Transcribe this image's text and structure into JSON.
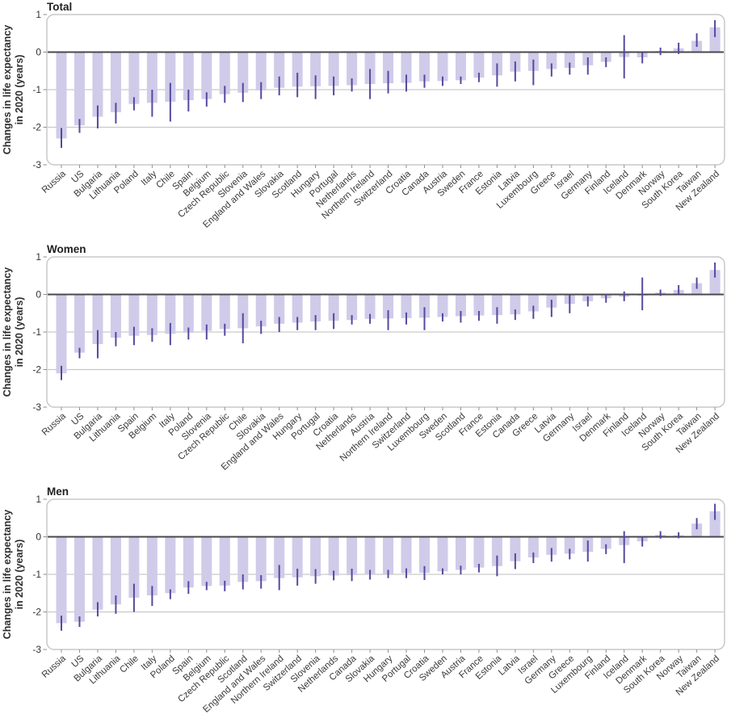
{
  "colors": {
    "bar_fill": "#cfcbe9",
    "error_bar": "#544a9e",
    "zero_line": "#48484e",
    "gridline": "#c9c9c9",
    "frame": "#c8c8c8",
    "tick_mark": "#8f8f8f",
    "title_text": "#1f1f1f",
    "tick_text": "#3a3a3a"
  },
  "chart_data": [
    {
      "type": "bar",
      "title": "Total",
      "ylabel": "Changes in life expectancy in 2020 (years)",
      "ylabel_line1": "Changes in life expectancy",
      "ylabel_line2": "in 2020 (years)",
      "ylim": [
        -3,
        1
      ],
      "yticks": [
        1,
        0,
        -1,
        -2,
        -3
      ],
      "gridlines": [
        -1,
        -2
      ],
      "legend": "none",
      "error_bars": true,
      "categories": [
        "Russia",
        "US",
        "Bulgaria",
        "Lithuania",
        "Poland",
        "Italy",
        "Chile",
        "Spain",
        "Belgium",
        "Czech Republic",
        "Slovenia",
        "England and Wales",
        "Slovakia",
        "Scotland",
        "Hungary",
        "Portugal",
        "Netherlands",
        "Northern Ireland",
        "Switzerland",
        "Croatia",
        "Canada",
        "Austria",
        "Sweden",
        "France",
        "Estonia",
        "Latvia",
        "Luxembourg",
        "Greece",
        "Israel",
        "Germany",
        "Finland",
        "Iceland",
        "Denmark",
        "Norway",
        "South Korea",
        "Taiwan",
        "New Zealand"
      ],
      "values": [
        -2.3,
        -1.95,
        -1.72,
        -1.6,
        -1.38,
        -1.35,
        -1.32,
        -1.28,
        -1.25,
        -1.12,
        -1.08,
        -1.02,
        -0.95,
        -0.92,
        -0.91,
        -0.9,
        -0.88,
        -0.85,
        -0.83,
        -0.82,
        -0.78,
        -0.77,
        -0.75,
        -0.68,
        -0.62,
        -0.52,
        -0.5,
        -0.45,
        -0.42,
        -0.35,
        -0.26,
        -0.13,
        -0.14,
        0.03,
        0.1,
        0.3,
        0.66
      ],
      "ci_lower": [
        -2.55,
        -2.15,
        -2.03,
        -1.9,
        -1.55,
        -1.72,
        -1.85,
        -1.58,
        -1.45,
        -1.35,
        -1.33,
        -1.25,
        -1.15,
        -1.2,
        -1.25,
        -1.15,
        -1.05,
        -1.25,
        -1.1,
        -1.05,
        -0.95,
        -0.9,
        -0.85,
        -0.8,
        -0.92,
        -0.78,
        -0.88,
        -0.65,
        -0.6,
        -0.6,
        -0.4,
        -0.7,
        -0.3,
        -0.08,
        -0.05,
        0.14,
        0.4
      ],
      "ci_upper": [
        -2.02,
        -1.78,
        -1.42,
        -1.35,
        -1.2,
        -1.0,
        -0.82,
        -1.0,
        -1.07,
        -0.9,
        -0.82,
        -0.8,
        -0.65,
        -0.55,
        -0.62,
        -0.65,
        -0.7,
        -0.45,
        -0.5,
        -0.6,
        -0.6,
        -0.65,
        -0.65,
        -0.55,
        -0.3,
        -0.25,
        -0.2,
        -0.3,
        -0.28,
        -0.14,
        -0.14,
        0.45,
        -0.02,
        0.12,
        0.25,
        0.5,
        0.85
      ]
    },
    {
      "type": "bar",
      "title": "Women",
      "ylabel": "Changes in life expectancy in 2020 (years)",
      "ylabel_line1": "Changes in life expectancy",
      "ylabel_line2": "in 2020 (years)",
      "ylim": [
        -3,
        1
      ],
      "yticks": [
        1,
        0,
        -1,
        -2,
        -3
      ],
      "gridlines": [
        -1,
        -2
      ],
      "legend": "none",
      "error_bars": true,
      "categories": [
        "Russia",
        "US",
        "Bulgaria",
        "Lithuania",
        "Spain",
        "Belgium",
        "Italy",
        "Poland",
        "Slovenia",
        "Czech Republic",
        "Chile",
        "Slovakia",
        "England and Wales",
        "Hungary",
        "Portugal",
        "Croatia",
        "Netherlands",
        "Austria",
        "Northern Ireland",
        "Switzerland",
        "Luxembourg",
        "Sweden",
        "Scotland",
        "France",
        "Estonia",
        "Canada",
        "Greece",
        "Latvia",
        "Germany",
        "Israel",
        "Denmark",
        "Finland",
        "Iceland",
        "Norway",
        "South Korea",
        "Taiwan",
        "New Zealand"
      ],
      "values": [
        -2.1,
        -1.55,
        -1.32,
        -1.15,
        -1.1,
        -1.08,
        -1.05,
        -1.02,
        -0.97,
        -0.92,
        -0.9,
        -0.85,
        -0.78,
        -0.75,
        -0.72,
        -0.7,
        -0.68,
        -0.65,
        -0.64,
        -0.63,
        -0.62,
        -0.6,
        -0.58,
        -0.56,
        -0.55,
        -0.53,
        -0.45,
        -0.35,
        -0.25,
        -0.18,
        -0.1,
        -0.06,
        -0.03,
        0.05,
        0.12,
        0.3,
        0.65
      ],
      "ci_lower": [
        -2.28,
        -1.7,
        -1.7,
        -1.38,
        -1.35,
        -1.26,
        -1.35,
        -1.2,
        -1.2,
        -1.1,
        -1.3,
        -1.05,
        -1.0,
        -0.95,
        -0.95,
        -0.92,
        -0.8,
        -0.78,
        -0.95,
        -0.8,
        -0.95,
        -0.72,
        -0.75,
        -0.7,
        -0.78,
        -0.68,
        -0.65,
        -0.6,
        -0.5,
        -0.32,
        -0.22,
        -0.18,
        -0.42,
        -0.04,
        0.0,
        0.15,
        0.45
      ],
      "ci_upper": [
        -1.9,
        -1.42,
        -0.95,
        -1.0,
        -0.86,
        -0.9,
        -0.76,
        -0.88,
        -0.8,
        -0.78,
        -0.5,
        -0.7,
        -0.6,
        -0.6,
        -0.55,
        -0.5,
        -0.55,
        -0.52,
        -0.42,
        -0.48,
        -0.34,
        -0.5,
        -0.44,
        -0.44,
        -0.34,
        -0.4,
        -0.3,
        -0.14,
        -0.02,
        -0.05,
        0.02,
        0.08,
        0.45,
        0.13,
        0.25,
        0.45,
        0.85
      ]
    },
    {
      "type": "bar",
      "title": "Men",
      "ylabel": "Changes in life expectancy in 2020 (years)",
      "ylabel_line1": "Changes in life expectancy",
      "ylabel_line2": "in 2020 (years)",
      "ylim": [
        -3,
        1
      ],
      "yticks": [
        1,
        0,
        -1,
        -2,
        -3
      ],
      "gridlines": [
        -1,
        -2
      ],
      "legend": "none",
      "error_bars": true,
      "categories": [
        "Russia",
        "US",
        "Bulgaria",
        "Lithuania",
        "Chile",
        "Italy",
        "Poland",
        "Spain",
        "Belgium",
        "Czech Republic",
        "Scotland",
        "England and Wales",
        "Northern Ireland",
        "Switzerland",
        "Slovenia",
        "Netherlands",
        "Canada",
        "Slovakia",
        "Hungary",
        "Portugal",
        "Croatia",
        "Sweden",
        "Austria",
        "France",
        "Estonia",
        "Latvia",
        "Israel",
        "Germany",
        "Greece",
        "Luxembourg",
        "Finland",
        "Iceland",
        "Denmark",
        "South Korea",
        "Norway",
        "Taiwan",
        "New Zealand"
      ],
      "values": [
        -2.3,
        -2.26,
        -1.94,
        -1.8,
        -1.62,
        -1.56,
        -1.5,
        -1.35,
        -1.31,
        -1.3,
        -1.2,
        -1.18,
        -1.1,
        -1.08,
        -1.05,
        -1.03,
        -1.02,
        -1.0,
        -0.99,
        -0.97,
        -0.96,
        -0.92,
        -0.88,
        -0.82,
        -0.78,
        -0.65,
        -0.55,
        -0.48,
        -0.45,
        -0.4,
        -0.32,
        -0.22,
        -0.12,
        0.05,
        0.04,
        0.35,
        0.68
      ],
      "ci_lower": [
        -2.5,
        -2.4,
        -2.12,
        -2.05,
        -2.0,
        -1.84,
        -1.66,
        -1.52,
        -1.42,
        -1.45,
        -1.4,
        -1.38,
        -1.42,
        -1.3,
        -1.25,
        -1.16,
        -1.18,
        -1.14,
        -1.1,
        -1.1,
        -1.15,
        -1.0,
        -1.0,
        -0.95,
        -1.05,
        -0.86,
        -0.7,
        -0.66,
        -0.6,
        -0.66,
        -0.46,
        -0.7,
        -0.26,
        -0.05,
        -0.04,
        0.2,
        0.45
      ],
      "ci_upper": [
        -2.1,
        -2.12,
        -1.74,
        -1.56,
        -1.25,
        -1.31,
        -1.4,
        -1.18,
        -1.2,
        -1.17,
        -1.0,
        -1.02,
        -0.75,
        -0.85,
        -0.86,
        -0.9,
        -0.85,
        -0.88,
        -0.88,
        -0.84,
        -0.78,
        -0.84,
        -0.77,
        -0.72,
        -0.5,
        -0.44,
        -0.42,
        -0.3,
        -0.32,
        -0.1,
        -0.2,
        0.15,
        0.0,
        0.15,
        0.12,
        0.5,
        0.88
      ]
    }
  ]
}
